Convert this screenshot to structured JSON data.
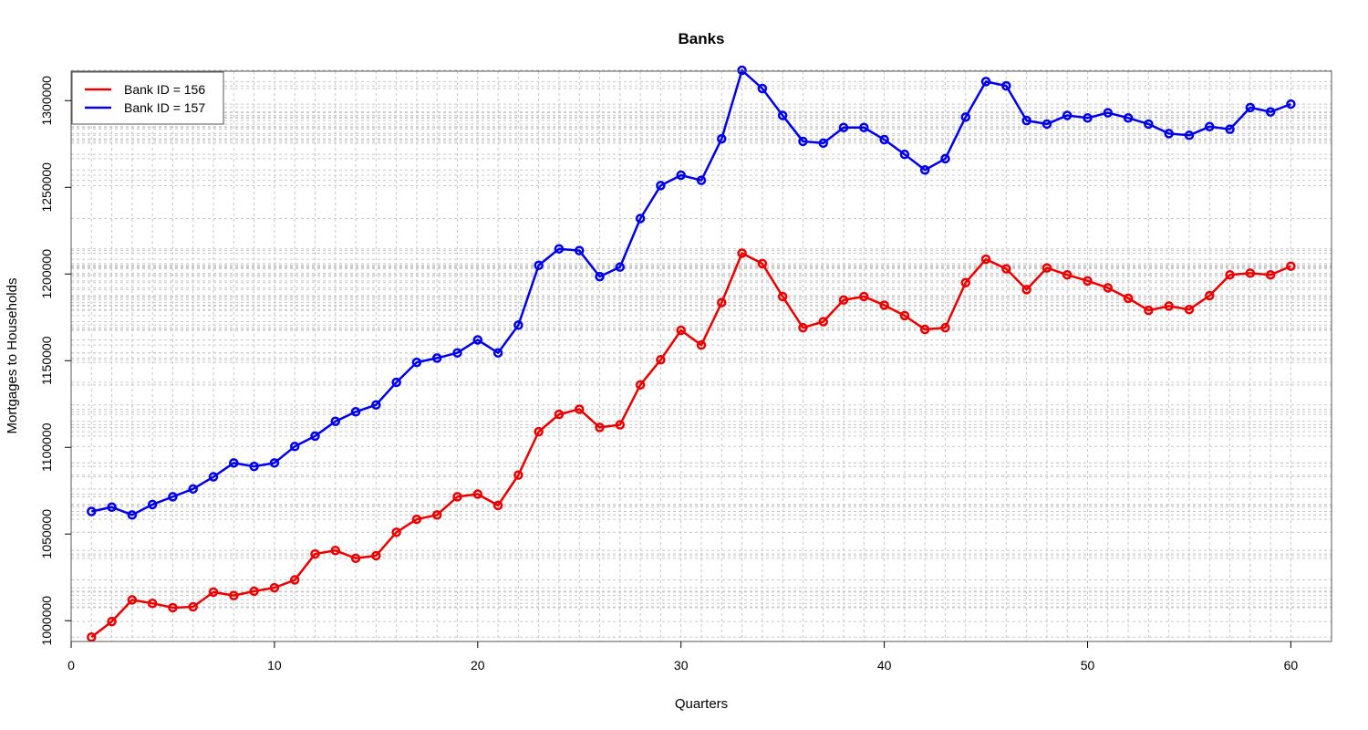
{
  "chart_data": {
    "type": "line",
    "title": "Banks",
    "xlabel": "Quarters",
    "ylabel": "Mortgages to Households",
    "xlim": [
      0,
      62
    ],
    "ylim": [
      988000,
      1317000
    ],
    "xticks": [
      0,
      10,
      20,
      30,
      40,
      50,
      60
    ],
    "yticks": [
      1000000,
      1050000,
      1100000,
      1150000,
      1200000,
      1250000,
      1300000
    ],
    "grid": true,
    "legend_position": "top-left",
    "x": [
      1,
      2,
      3,
      4,
      5,
      6,
      7,
      8,
      9,
      10,
      11,
      12,
      13,
      14,
      15,
      16,
      17,
      18,
      19,
      20,
      21,
      22,
      23,
      24,
      25,
      26,
      27,
      28,
      29,
      30,
      31,
      32,
      33,
      34,
      35,
      36,
      37,
      38,
      39,
      40,
      41,
      42,
      43,
      44,
      45,
      46,
      47,
      48,
      49,
      50,
      51,
      52,
      53,
      54,
      55,
      56,
      57,
      58,
      59,
      60
    ],
    "series": [
      {
        "name": "Bank ID = 156",
        "color": "#ee0000",
        "values": [
          990500,
          999500,
          1012000,
          1010000,
          1007500,
          1008000,
          1016500,
          1014500,
          1017000,
          1019000,
          1023500,
          1038500,
          1040500,
          1036000,
          1037500,
          1051000,
          1058500,
          1061000,
          1071500,
          1073000,
          1066500,
          1084000,
          1109000,
          1119000,
          1122000,
          1111500,
          1113000,
          1136000,
          1150500,
          1167500,
          1159000,
          1183500,
          1212000,
          1206000,
          1187000,
          1169000,
          1172500,
          1185000,
          1187000,
          1182000,
          1176000,
          1168000,
          1169000,
          1195000,
          1208500,
          1203000,
          1191000,
          1203500,
          1199500,
          1196000,
          1192000,
          1186000,
          1179000,
          1181500,
          1179500,
          1187500,
          1199500,
          1200500,
          1199500,
          1204500
        ]
      },
      {
        "name": "Bank ID = 157",
        "color": "#0000ee",
        "values": [
          1063000,
          1065500,
          1061000,
          1067000,
          1071500,
          1076000,
          1083000,
          1091000,
          1089000,
          1091000,
          1100500,
          1106500,
          1115000,
          1120500,
          1124500,
          1137500,
          1149000,
          1151500,
          1154500,
          1162000,
          1154500,
          1170500,
          1205000,
          1214500,
          1213500,
          1198500,
          1204000,
          1232000,
          1251000,
          1257000,
          1254000,
          1278000,
          1317500,
          1307000,
          1291500,
          1276500,
          1275500,
          1284500,
          1284500,
          1277500,
          1269000,
          1260000,
          1266500,
          1290500,
          1311000,
          1308500,
          1288500,
          1286500,
          1291500,
          1290000,
          1293000,
          1290000,
          1286500,
          1281000,
          1280000,
          1285000,
          1283500,
          1296000,
          1293500,
          1298000
        ]
      }
    ]
  }
}
